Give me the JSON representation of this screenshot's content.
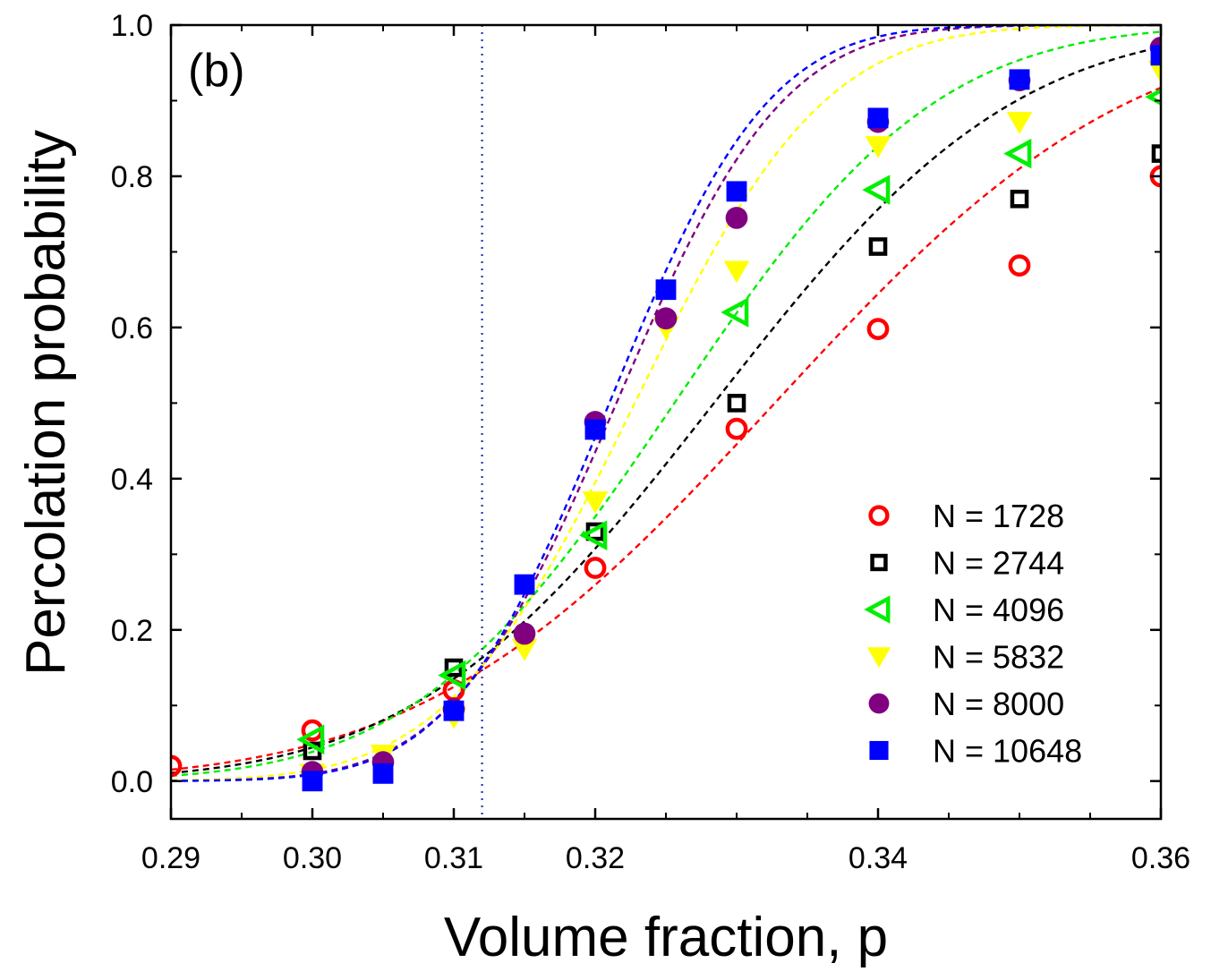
{
  "chart_data": {
    "type": "scatter",
    "panel_label": "(b)",
    "xlabel": "Volume fraction, p",
    "ylabel": "Percolation probability",
    "xlim": [
      0.29,
      0.36
    ],
    "ylim": [
      -0.05,
      1.0
    ],
    "x_ticks": [
      0.29,
      0.3,
      0.31,
      0.32,
      0.34,
      0.36
    ],
    "x_tick_labels": [
      "0.29",
      "0.30",
      "0.31",
      "0.32",
      "0.34",
      "0.36"
    ],
    "y_ticks": [
      0.0,
      0.2,
      0.4,
      0.6,
      0.8,
      1.0
    ],
    "y_tick_labels": [
      "0.0",
      "0.2",
      "0.4",
      "0.6",
      "0.8",
      "1.0"
    ],
    "vertical_reference_line": 0.312,
    "legend_position": "bottom-right",
    "series": [
      {
        "name": "N = 1728",
        "marker": "open-circle",
        "color": "#ff0000",
        "x": [
          0.29,
          0.3,
          0.31,
          0.32,
          0.33,
          0.34,
          0.35,
          0.36
        ],
        "y": [
          0.02,
          0.067,
          0.12,
          0.282,
          0.466,
          0.598,
          0.682,
          0.8
        ],
        "fit": {
          "pc": 0.3327,
          "w": 0.0197
        }
      },
      {
        "name": "N = 2744",
        "marker": "open-square",
        "color": "#000000",
        "x": [
          0.3,
          0.31,
          0.32,
          0.33,
          0.34,
          0.35,
          0.36
        ],
        "y": [
          0.04,
          0.15,
          0.33,
          0.5,
          0.707,
          0.77,
          0.83
        ],
        "fit": {
          "pc": 0.3284,
          "w": 0.0167
        }
      },
      {
        "name": "N = 4096",
        "marker": "open-triangle-left",
        "color": "#00ee00",
        "x": [
          0.3,
          0.31,
          0.32,
          0.33,
          0.34,
          0.35,
          0.36
        ],
        "y": [
          0.055,
          0.14,
          0.325,
          0.62,
          0.782,
          0.83,
          0.905
        ],
        "fit": {
          "pc": 0.3256,
          "w": 0.0145
        }
      },
      {
        "name": "N = 5832",
        "marker": "filled-triangle-down",
        "color": "#ffff00",
        "x": [
          0.3,
          0.305,
          0.31,
          0.315,
          0.32,
          0.325,
          0.33,
          0.34,
          0.35,
          0.36
        ],
        "y": [
          0.01,
          0.035,
          0.085,
          0.175,
          0.37,
          0.6,
          0.675,
          0.84,
          0.872,
          0.94
        ],
        "fit": {
          "pc": 0.3228,
          "w": 0.0105
        }
      },
      {
        "name": "N = 8000",
        "marker": "filled-circle",
        "color": "#800080",
        "x": [
          0.3,
          0.305,
          0.31,
          0.315,
          0.32,
          0.325,
          0.33,
          0.34,
          0.35,
          0.36
        ],
        "y": [
          0.012,
          0.025,
          0.095,
          0.195,
          0.475,
          0.612,
          0.745,
          0.872,
          0.927,
          0.97
        ],
        "fit": {
          "pc": 0.3215,
          "w": 0.0092
        }
      },
      {
        "name": "N = 10648",
        "marker": "filled-square",
        "color": "#0000ff",
        "x": [
          0.3,
          0.305,
          0.31,
          0.315,
          0.32,
          0.325,
          0.33,
          0.34,
          0.35,
          0.36
        ],
        "y": [
          0.0,
          0.01,
          0.093,
          0.26,
          0.465,
          0.65,
          0.78,
          0.877,
          0.928,
          0.96
        ],
        "fit": {
          "pc": 0.321,
          "w": 0.0088
        }
      }
    ]
  }
}
